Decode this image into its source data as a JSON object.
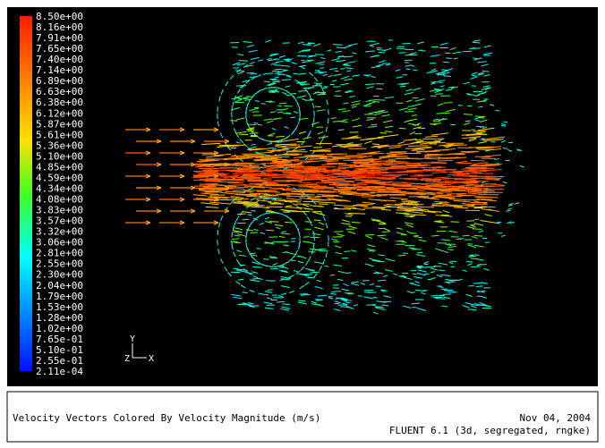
{
  "colorbar": {
    "labels": [
      "8.50e+00",
      "8.16e+00",
      "7.91e+00",
      "7.65e+00",
      "7.40e+00",
      "7.14e+00",
      "6.89e+00",
      "6.63e+00",
      "6.38e+00",
      "6.12e+00",
      "5.87e+00",
      "5.61e+00",
      "5.36e+00",
      "5.10e+00",
      "4.85e+00",
      "4.59e+00",
      "4.34e+00",
      "4.08e+00",
      "3.83e+00",
      "3.57e+00",
      "3.32e+00",
      "3.06e+00",
      "2.81e+00",
      "2.55e+00",
      "2.30e+00",
      "2.04e+00",
      "1.79e+00",
      "1.53e+00",
      "1.28e+00",
      "1.02e+00",
      "7.65e-01",
      "5.10e-01",
      "2.55e-01",
      "2.11e-04"
    ]
  },
  "axes": {
    "y": "Y",
    "z": "Z",
    "x": "X"
  },
  "footer": {
    "caption": "Velocity Vectors Colored By Velocity Magnitude (m/s)",
    "date": "Nov 04, 2004",
    "solver": "FLUENT 6.1 (3d, segregated, rngke)"
  }
}
